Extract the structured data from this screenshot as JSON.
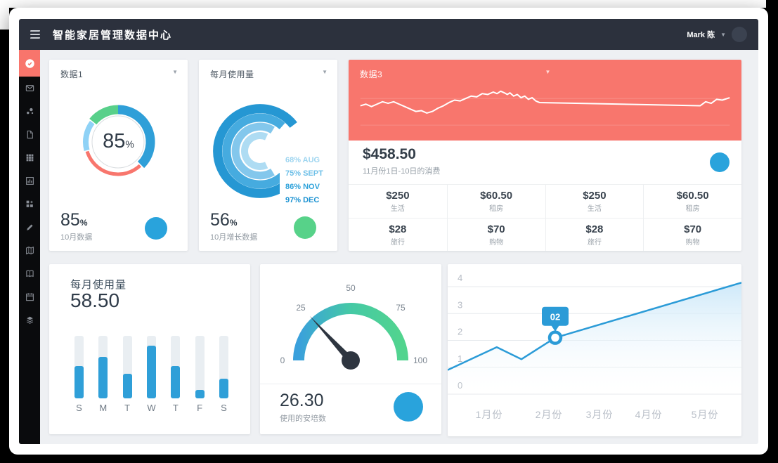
{
  "header": {
    "title": "智能家居管理数据中心",
    "user_name": "Mark 陈",
    "user_caret": "▼"
  },
  "sidebar": {
    "items": [
      {
        "name": "dashboard",
        "icon": "dashboard-icon",
        "active": true
      },
      {
        "name": "mail",
        "icon": "mail-icon",
        "active": false
      },
      {
        "name": "share",
        "icon": "share-dots-icon",
        "active": false
      },
      {
        "name": "documents",
        "icon": "file-icon",
        "active": false
      },
      {
        "name": "grid",
        "icon": "grid-icon",
        "active": false
      },
      {
        "name": "charts",
        "icon": "chart-box-icon",
        "active": false
      },
      {
        "name": "widgets",
        "icon": "widgets-icon",
        "active": false
      },
      {
        "name": "edit",
        "icon": "pencil-icon",
        "active": false
      },
      {
        "name": "map",
        "icon": "map-icon",
        "active": false
      },
      {
        "name": "book",
        "icon": "book-icon",
        "active": false
      },
      {
        "name": "calendar",
        "icon": "calendar-icon",
        "active": false
      },
      {
        "name": "layers",
        "icon": "layers-icon",
        "active": false
      }
    ]
  },
  "cards": {
    "data1": {
      "title": "数据1",
      "caret": "▼",
      "center_value": "85",
      "center_unit": "%",
      "footer_value": "85",
      "footer_unit": "%",
      "footer_label": "10月数据"
    },
    "rings": {
      "title": "每月使用量",
      "caret": "▼",
      "footer_value": "56",
      "footer_unit": "%",
      "footer_label": "10月增长数据"
    },
    "data3": {
      "title": "数据3",
      "caret": "▼",
      "amount": "$458.50",
      "amount_label": "11月份1日-10日的消费"
    },
    "bars": {
      "title": "每月使用量",
      "value": "58.50"
    },
    "gauge": {
      "value": "26.30",
      "label": "使用的安培数"
    }
  },
  "colors": {
    "accent_blue": "#29a3dc",
    "accent_green": "#57d289",
    "accent_red": "#f8766d",
    "header_dark": "#2c313d",
    "sidebar_black": "#0a0b0d",
    "content_bg": "#eef0f3"
  },
  "chart_data": [
    {
      "id": "donut1",
      "type": "donut",
      "title": "数据1",
      "center_label": "85%",
      "segments": [
        {
          "color": "#2f9fd8",
          "start": 0,
          "end": 135,
          "width": 13
        },
        {
          "color": "#f8766d",
          "start": 137,
          "end": 253,
          "width": 5
        },
        {
          "color": "#8fd2f6",
          "start": 255,
          "end": 307,
          "width": 8
        },
        {
          "color": "#58d08a",
          "start": 309,
          "end": 360,
          "width": 13
        }
      ]
    },
    {
      "id": "rings",
      "type": "radial-rings",
      "title": "每月使用量",
      "series": [
        {
          "label": "68% AUG",
          "pct": 68,
          "color": "#aedcf3",
          "text_color": "#9ed5f0"
        },
        {
          "label": "75% SEPT",
          "pct": 75,
          "color": "#83c7ec",
          "text_color": "#6fc0e8"
        },
        {
          "label": "86% NOV",
          "pct": 86,
          "color": "#46abdf",
          "text_color": "#2fa3db"
        },
        {
          "label": "97% DEC",
          "pct": 97,
          "color": "#2597d3",
          "text_color": "#1d93d2"
        }
      ]
    },
    {
      "id": "spark",
      "type": "line",
      "title": "数据3",
      "summary": "$458.50",
      "summary_label": "11月份1日-10日的消费",
      "points": [
        [
          0,
          57
        ],
        [
          1.5,
          55
        ],
        [
          3,
          58
        ],
        [
          4.5,
          55
        ],
        [
          6,
          52
        ],
        [
          7.5,
          54
        ],
        [
          9,
          52
        ],
        [
          10.5,
          55
        ],
        [
          12,
          58
        ],
        [
          13.5,
          61
        ],
        [
          15,
          64
        ],
        [
          16.5,
          63
        ],
        [
          18,
          66
        ],
        [
          19.5,
          64
        ],
        [
          21,
          60
        ],
        [
          22.5,
          57
        ],
        [
          24,
          53
        ],
        [
          25.5,
          50
        ],
        [
          27,
          51
        ],
        [
          28.5,
          48
        ],
        [
          30,
          45
        ],
        [
          31.5,
          46
        ],
        [
          33,
          42
        ],
        [
          34.5,
          43
        ],
        [
          36,
          40
        ],
        [
          37,
          42
        ],
        [
          38,
          39
        ],
        [
          39,
          41
        ],
        [
          39.8,
          43
        ],
        [
          40.5,
          41
        ],
        [
          41.5,
          45
        ],
        [
          42.5,
          43
        ],
        [
          43.5,
          47
        ],
        [
          44.5,
          45
        ],
        [
          45.5,
          49
        ],
        [
          46.5,
          47
        ],
        [
          47.5,
          51
        ],
        [
          48.5,
          53
        ],
        [
          92,
          57
        ],
        [
          93.5,
          52
        ],
        [
          95,
          54
        ],
        [
          96.5,
          49
        ],
        [
          98,
          50
        ],
        [
          100,
          47
        ]
      ],
      "table": [
        [
          {
            "value": "$250",
            "label": "生活"
          },
          {
            "value": "$60.50",
            "label": "租房"
          },
          {
            "value": "$250",
            "label": "生活"
          },
          {
            "value": "$60.50",
            "label": "租房"
          }
        ],
        [
          {
            "value": "$28",
            "label": "旅行"
          },
          {
            "value": "$70",
            "label": "购物"
          },
          {
            "value": "$28",
            "label": "旅行"
          },
          {
            "value": "$70",
            "label": "购物"
          }
        ]
      ]
    },
    {
      "id": "weekbars",
      "type": "bar",
      "title": "每月使用量",
      "value": "58.50",
      "categories": [
        "S",
        "M",
        "T",
        "W",
        "T",
        "F",
        "S"
      ],
      "values": [
        52,
        66,
        39,
        84,
        52,
        13,
        32
      ],
      "ylim": [
        0,
        100
      ]
    },
    {
      "id": "ampgauge",
      "type": "gauge",
      "min": 0,
      "max": 100,
      "ticks": [
        "0",
        "25",
        "50",
        "75",
        "100"
      ],
      "value": 26.3,
      "display": "26.30",
      "label": "使用的安培数",
      "gradient": [
        "#3aa0dc",
        "#45c9a5",
        "#52d48e"
      ]
    },
    {
      "id": "growth",
      "type": "area",
      "categories": [
        "1月份",
        "2月份",
        "3月份",
        "4月份",
        "5月份"
      ],
      "yticks": [
        4,
        3,
        2,
        1,
        0
      ],
      "ylim": [
        0,
        4
      ],
      "points": [
        {
          "x": 0,
          "v": 0.9
        },
        {
          "x": 0.167,
          "v": 1.75
        },
        {
          "x": 0.251,
          "v": 1.3
        },
        {
          "x": 0.366,
          "v": 2.1
        },
        {
          "x": 1,
          "v": 4.15
        }
      ],
      "marker_index": 3,
      "tooltip": "02"
    }
  ]
}
